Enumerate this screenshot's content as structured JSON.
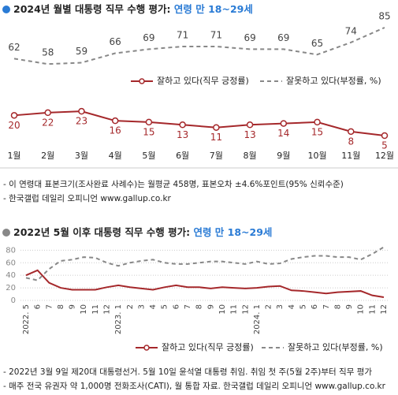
{
  "chart_data": [
    {
      "type": "line",
      "title": "2024년 월별 대통령 직무 수행 평가: ",
      "title_highlight": "연령 만 18~29세",
      "categories": [
        "1월",
        "2월",
        "3월",
        "4월",
        "5월",
        "6월",
        "7월",
        "8월",
        "9월",
        "10월",
        "11월",
        "12월"
      ],
      "series": [
        {
          "name": "잘하고 있다(직무 긍정률)",
          "color": "#a5282b",
          "values": [
            20,
            22,
            23,
            16,
            15,
            13,
            11,
            13,
            14,
            15,
            8,
            5
          ]
        },
        {
          "name": "잘못하고 있다(부정률, %)",
          "color": "#888888",
          "values": [
            62,
            58,
            59,
            66,
            69,
            71,
            71,
            69,
            69,
            65,
            74,
            85
          ]
        }
      ],
      "notes": [
        "- 이 연령대 표본크기(조사완료 사례수)는 월평균 458명, 표본오차 ±4.6%포인트(95% 신뢰수준)",
        "- 한국갤럽 데일리 오피니언 www.gallup.co.kr"
      ]
    },
    {
      "type": "line",
      "title": "2022년 5월 이후 대통령 직무 수행 평가: ",
      "title_highlight": "연령 만 18~29세",
      "categories": [
        "2022. 5",
        "6",
        "7",
        "8",
        "9",
        "10",
        "11",
        "12",
        "2023. 1",
        "2",
        "3",
        "4",
        "5",
        "6",
        "7",
        "8",
        "9",
        "10",
        "11",
        "12",
        "2024. 1",
        "2",
        "3",
        "4",
        "5",
        "6",
        "7",
        "8",
        "9",
        "10",
        "11",
        "12"
      ],
      "series": [
        {
          "name": "잘하고 있다(직무 긍정률)",
          "color": "#a5282b",
          "values": [
            40,
            48,
            28,
            20,
            17,
            17,
            17,
            21,
            24,
            21,
            19,
            17,
            21,
            24,
            21,
            21,
            19,
            21,
            20,
            19,
            20,
            22,
            23,
            16,
            15,
            13,
            11,
            13,
            14,
            15,
            8,
            5
          ]
        },
        {
          "name": "잘못하고 있다(부정률, %)",
          "color": "#888888",
          "values": [
            36,
            32,
            50,
            63,
            65,
            69,
            68,
            60,
            55,
            60,
            63,
            65,
            60,
            58,
            58,
            60,
            62,
            62,
            60,
            58,
            62,
            58,
            59,
            66,
            69,
            71,
            71,
            69,
            69,
            65,
            74,
            85
          ]
        }
      ],
      "ylim": [
        0,
        88
      ],
      "yticks": [
        0,
        20,
        40,
        60,
        80
      ],
      "grid": true,
      "notes": [
        "- 2022년 3월 9일 제20대 대통령선거. 5월 10일 윤석열 대통령 취임. 취임 첫 주(5월 2주)부터 직무 평가",
        "- 매주 전국 유권자 약 1,000명 전화조사(CATI), 월 통합 자료. 한국갤럽 데일리 오피니언 www.gallup.co.kr"
      ]
    }
  ]
}
